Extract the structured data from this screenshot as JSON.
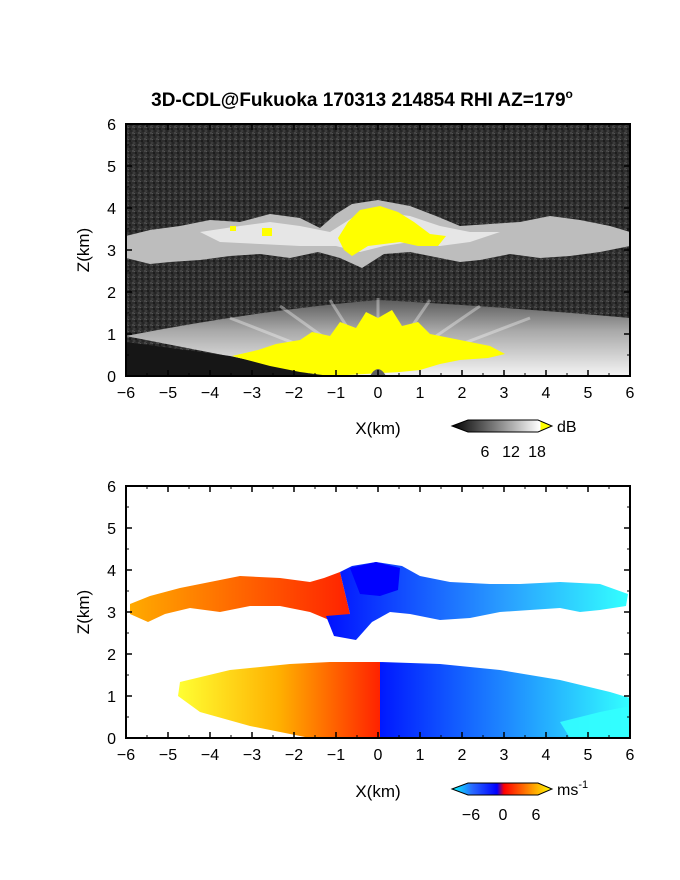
{
  "chart_data": [
    {
      "type": "heatmap",
      "title": "3D-CDL@Fukuoka 170313 214854 RHI AZ=179",
      "title_superscript": "o",
      "xlabel": "X(km)",
      "ylabel": "Z(km)",
      "xlim": [
        -6,
        6
      ],
      "ylim": [
        0,
        6
      ],
      "x_ticks": [
        "-6",
        "-5",
        "-4",
        "-3",
        "-2",
        "-1",
        "0",
        "1",
        "2",
        "3",
        "4",
        "5",
        "6"
      ],
      "y_ticks": [
        "0",
        "1",
        "2",
        "3",
        "4",
        "5",
        "6"
      ],
      "colorbar": {
        "label": "dB",
        "ticks": [
          "6",
          "12",
          "18"
        ],
        "range": [
          0,
          20
        ],
        "colors": [
          "#000000",
          "#ffffff",
          "#ffff00"
        ]
      },
      "features": [
        {
          "layer": "cloud_layer",
          "z_range": [
            2.6,
            4.0
          ]
        },
        {
          "layer": "boundary_layer",
          "z_range": [
            0,
            1.8
          ]
        },
        {
          "layer": "saturated_region",
          "value": ">18 dB",
          "color": "#ffff00"
        }
      ]
    },
    {
      "type": "heatmap",
      "title": "",
      "xlabel": "X(km)",
      "ylabel": "Z(km)",
      "xlim": [
        -6,
        6
      ],
      "ylim": [
        0,
        6
      ],
      "x_ticks": [
        "-6",
        "-5",
        "-4",
        "-3",
        "-2",
        "-1",
        "0",
        "1",
        "2",
        "3",
        "4",
        "5",
        "6"
      ],
      "y_ticks": [
        "0",
        "1",
        "2",
        "3",
        "4",
        "5",
        "6"
      ],
      "colorbar": {
        "label": "ms",
        "label_superscript": "-1",
        "ticks": [
          "-6",
          "0",
          "6"
        ],
        "range": [
          -7,
          7
        ],
        "colors": [
          "#00ffff",
          "#0000ff",
          "#ff0000",
          "#ffff00"
        ]
      },
      "features": [
        {
          "layer": "cloud_layer",
          "z_range": [
            2.4,
            4.2
          ],
          "negative_x": "positive velocity",
          "positive_x": "negative velocity"
        },
        {
          "layer": "boundary_layer",
          "z_range": [
            0,
            1.8
          ],
          "negative_x": "positive velocity",
          "positive_x": "negative velocity"
        }
      ]
    }
  ]
}
